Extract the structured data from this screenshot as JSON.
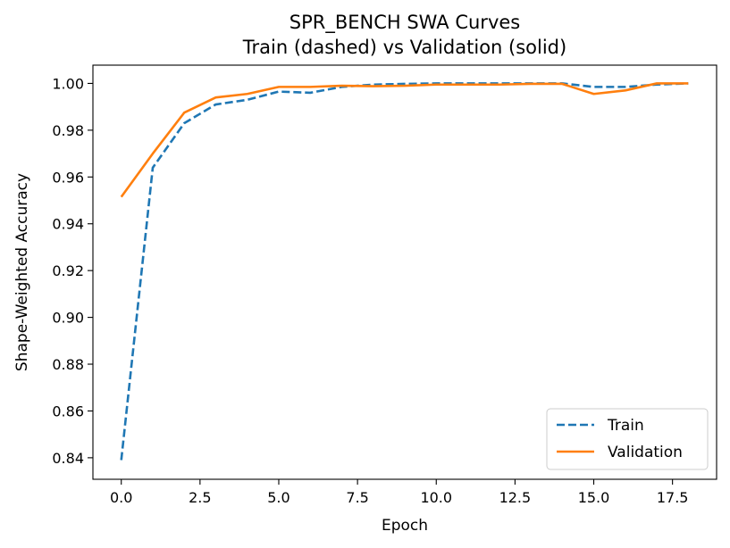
{
  "chart_data": {
    "type": "line",
    "title": "SPR_BENCH SWA Curves",
    "subtitle": "Train (dashed) vs Validation (solid)",
    "xlabel": "Epoch",
    "ylabel": "Shape-Weighted Accuracy",
    "xlim": [
      -0.9,
      18.9
    ],
    "ylim": [
      0.8308,
      1.0078
    ],
    "xticks": [
      0.0,
      2.5,
      5.0,
      7.5,
      10.0,
      12.5,
      15.0,
      17.5
    ],
    "xtick_labels": [
      "0.0",
      "2.5",
      "5.0",
      "7.5",
      "10.0",
      "12.5",
      "15.0",
      "17.5"
    ],
    "yticks": [
      0.84,
      0.86,
      0.88,
      0.9,
      0.92,
      0.94,
      0.96,
      0.98,
      1.0
    ],
    "ytick_labels": [
      "0.84",
      "0.86",
      "0.88",
      "0.90",
      "0.92",
      "0.94",
      "0.96",
      "0.98",
      "1.00"
    ],
    "grid": false,
    "legend_position": "bottom-right",
    "x": [
      0,
      1,
      2,
      3,
      4,
      5,
      6,
      7,
      8,
      9,
      10,
      11,
      12,
      13,
      14,
      15,
      16,
      17,
      18
    ],
    "series": [
      {
        "name": "Train",
        "style": "dashed",
        "color": "#1f77b4",
        "values": [
          0.839,
          0.964,
          0.983,
          0.991,
          0.993,
          0.9965,
          0.996,
          0.9985,
          0.9995,
          0.9998,
          1.0,
          1.0,
          1.0,
          1.0,
          1.0,
          0.9985,
          0.9985,
          0.9995,
          1.0
        ]
      },
      {
        "name": "Validation",
        "style": "solid",
        "color": "#ff7f0e",
        "values": [
          0.9515,
          0.97,
          0.9875,
          0.994,
          0.9955,
          0.9985,
          0.9985,
          0.999,
          0.9988,
          0.999,
          0.9995,
          0.9995,
          0.9995,
          0.9998,
          0.9998,
          0.9955,
          0.997,
          1.0,
          1.0
        ]
      }
    ]
  }
}
